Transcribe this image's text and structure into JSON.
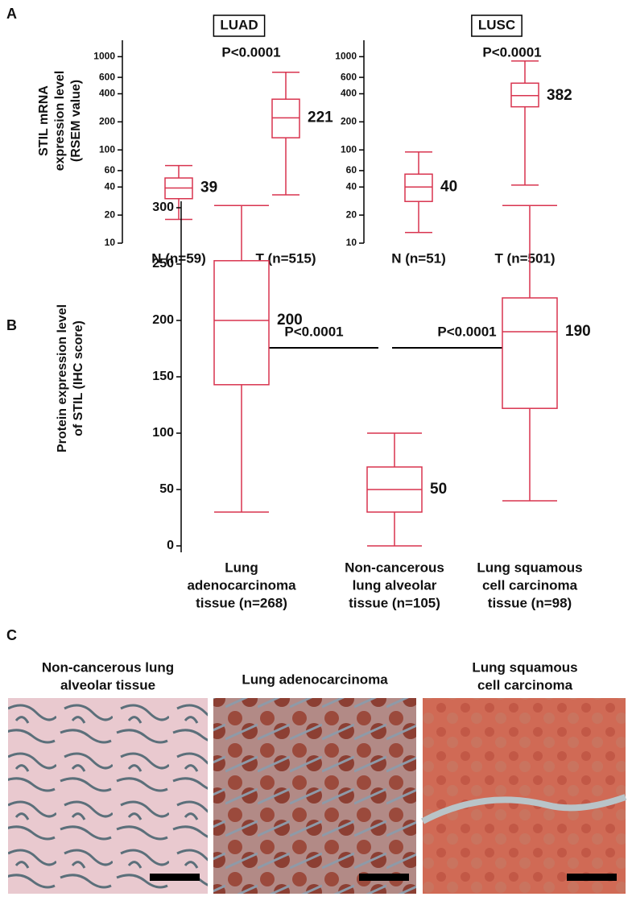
{
  "panels": [
    "A",
    "B",
    "C"
  ],
  "chart_data": [
    {
      "type": "box",
      "title": "LUAD",
      "annotations": [
        "P<0.0001"
      ],
      "log": true,
      "color": "#d8344f",
      "ylabel": [
        "STIL mRNA",
        "expression level",
        "(RSEM value)"
      ],
      "categories": [
        "N (n=59)",
        "T (n=515)"
      ],
      "min": [
        18,
        33
      ],
      "q1": [
        30,
        135
      ],
      "median": [
        39,
        221
      ],
      "q3": [
        50,
        350
      ],
      "max": [
        68,
        680
      ],
      "ylim": [
        10,
        1500
      ],
      "yticks": [
        10,
        20,
        40,
        60,
        100,
        200,
        400,
        600,
        1000
      ]
    },
    {
      "type": "box",
      "title": "LUSC",
      "annotations": [
        "P<0.0001"
      ],
      "log": true,
      "color": "#d8344f",
      "categories": [
        "N (n=51)",
        "T (n=501)"
      ],
      "min": [
        13,
        42
      ],
      "q1": [
        28,
        290
      ],
      "median": [
        40,
        382
      ],
      "q3": [
        55,
        520
      ],
      "max": [
        95,
        900
      ],
      "ylim": [
        10,
        1500
      ],
      "yticks": [
        10,
        20,
        40,
        60,
        100,
        200,
        400,
        600,
        1000
      ]
    },
    {
      "type": "box",
      "annotations": [
        "P<0.0001",
        "P<0.0001"
      ],
      "log": false,
      "color": "#d8344f",
      "ylabel": [
        "Protein expression level",
        "of STIL (IHC score)"
      ],
      "categories": [
        [
          "Lung",
          "adenocarcinoma",
          "tissue (n=268)"
        ],
        [
          "Non-cancerous",
          "lung alveolar",
          "tissue (n=105)"
        ],
        [
          "Lung squamous",
          "cell carcinoma",
          "tissue (n=98)"
        ]
      ],
      "min": [
        30,
        0,
        40
      ],
      "q1": [
        143,
        30,
        122
      ],
      "median": [
        200,
        50,
        190
      ],
      "q3": [
        253,
        70,
        220
      ],
      "max": [
        302,
        100,
        302
      ],
      "ylim": [
        0,
        300
      ],
      "yticks": [
        0,
        50,
        100,
        150,
        200,
        250,
        300
      ]
    }
  ],
  "image_titles": [
    [
      "Non-cancerous lung",
      "alveolar tissue"
    ],
    [
      "Lung adenocarcinoma"
    ],
    [
      "Lung squamous",
      "cell carcinoma"
    ]
  ]
}
